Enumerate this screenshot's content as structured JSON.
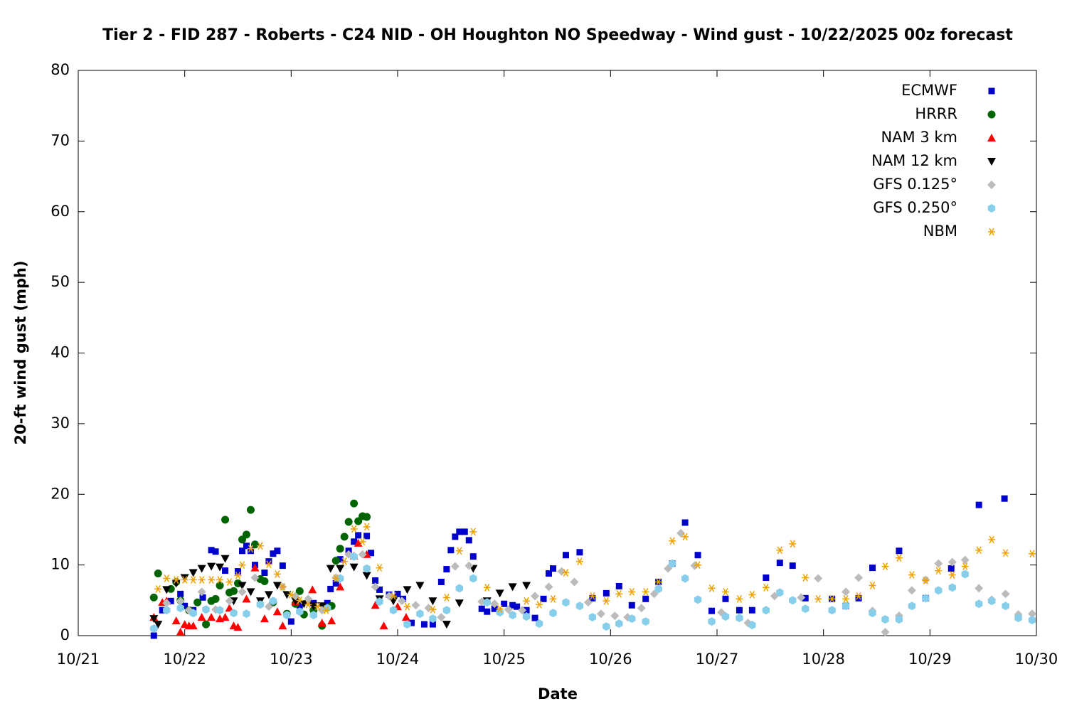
{
  "chart_data": {
    "type": "scatter",
    "title": "Tier 2 - FID 287 - Roberts - C24 NID - OH Houghton NO Speedway - Wind gust - 10/22/2025 00z forecast",
    "x_label": "Date",
    "y_label": "20-ft wind gust (mph)",
    "xlim": [
      0,
      9
    ],
    "xticks": [
      {
        "value": 0,
        "label": "10/21"
      },
      {
        "value": 1,
        "label": "10/22"
      },
      {
        "value": 2,
        "label": "10/23"
      },
      {
        "value": 3,
        "label": "10/24"
      },
      {
        "value": 4,
        "label": "10/25"
      },
      {
        "value": 5,
        "label": "10/26"
      },
      {
        "value": 6,
        "label": "10/27"
      },
      {
        "value": 7,
        "label": "10/28"
      },
      {
        "value": 8,
        "label": "10/29"
      },
      {
        "value": 9,
        "label": "10/30"
      }
    ],
    "ylim": [
      0,
      80
    ],
    "yticks": [
      0,
      10,
      20,
      30,
      40,
      50,
      60,
      70,
      80
    ],
    "grid": false,
    "legend": "top-right",
    "series": [
      {
        "name": "ECMWF",
        "color": "#0000cc",
        "marker": "square",
        "x": [
          0.71,
          0.79,
          0.87,
          0.96,
          1.0,
          1.08,
          1.17,
          1.25,
          1.29,
          1.38,
          1.5,
          1.54,
          1.58,
          1.62,
          1.66,
          1.75,
          1.79,
          1.83,
          1.87,
          1.92,
          2.0,
          2.08,
          2.21,
          2.34,
          2.37,
          2.42,
          2.46,
          2.54,
          2.59,
          2.63,
          2.71,
          2.75,
          2.79,
          2.83,
          2.92,
          3.0,
          3.05,
          3.13,
          3.25,
          3.33,
          3.41,
          3.46,
          3.5,
          3.54,
          3.58,
          3.63,
          3.67,
          3.71,
          3.79,
          3.84,
          3.91,
          4.0,
          4.08,
          4.12,
          4.21,
          4.29,
          4.37,
          4.42,
          4.46,
          4.58,
          4.71,
          4.83,
          4.96,
          5.08,
          5.2,
          5.33,
          5.45,
          5.58,
          5.7,
          5.82,
          5.95,
          6.08,
          6.21,
          6.33,
          6.46,
          6.59,
          6.71,
          6.83,
          7.08,
          7.21,
          7.33,
          7.46,
          7.71,
          7.96,
          8.2,
          8.46,
          8.7
        ],
        "values": [
          0,
          3.6,
          4.9,
          5.9,
          4.2,
          3.6,
          5.4,
          12.1,
          11.9,
          9.2,
          9.1,
          12.0,
          12.7,
          12.0,
          10.0,
          8.9,
          10.5,
          11.6,
          12.0,
          9.9,
          2.0,
          4.3,
          4.6,
          4.6,
          6.6,
          7.4,
          10.8,
          12.0,
          13.3,
          14.2,
          14.1,
          11.7,
          7.8,
          6.5,
          5.8,
          5.9,
          5.2,
          1.8,
          1.6,
          1.6,
          7.6,
          9.4,
          12.1,
          14.0,
          14.7,
          14.7,
          13.5,
          11.2,
          3.8,
          3.4,
          3.8,
          4.5,
          4.3,
          4.1,
          3.6,
          2.5,
          5.2,
          8.8,
          9.5,
          11.4,
          11.8,
          5.3,
          6.0,
          7.0,
          4.3,
          5.2,
          7.6,
          10.2,
          16.0,
          11.4,
          3.5,
          5.2,
          3.6,
          3.6,
          8.2,
          10.3,
          9.9,
          5.3,
          5.2,
          4.2,
          5.3,
          9.6,
          12.0,
          5.3,
          9.5,
          18.5,
          19.4
        ]
      },
      {
        "name": "HRRR",
        "color": "#006400",
        "marker": "circle",
        "x": [
          0.71,
          0.75,
          0.87,
          0.92,
          0.96,
          1.04,
          1.12,
          1.2,
          1.25,
          1.29,
          1.33,
          1.38,
          1.42,
          1.46,
          1.5,
          1.54,
          1.58,
          1.62,
          1.66,
          1.71,
          1.75,
          1.83,
          1.96,
          2.04,
          2.08,
          2.12,
          2.21,
          2.29,
          2.38,
          2.42,
          2.46,
          2.5,
          2.54,
          2.59,
          2.63,
          2.67,
          2.71
        ],
        "values": [
          5.4,
          8.8,
          6.6,
          7.6,
          5.0,
          3.6,
          4.7,
          1.6,
          4.9,
          5.2,
          7.1,
          16.4,
          6.1,
          6.3,
          7.4,
          13.6,
          14.3,
          17.8,
          12.9,
          8.0,
          7.7,
          4.7,
          3.1,
          4.5,
          6.3,
          3.0,
          3.6,
          1.4,
          4.2,
          10.6,
          12.3,
          14.0,
          16.1,
          18.7,
          16.2,
          16.9,
          16.8
        ]
      },
      {
        "name": "NAM 3 km",
        "color": "#ff0000",
        "marker": "triangle-up",
        "x": [
          0.71,
          0.79,
          0.83,
          0.92,
          0.96,
          1.0,
          1.04,
          1.08,
          1.16,
          1.25,
          1.33,
          1.38,
          1.42,
          1.46,
          1.5,
          1.58,
          1.66,
          1.75,
          1.87,
          1.92,
          2.04,
          2.2,
          2.29,
          2.38,
          2.46,
          2.59,
          2.63,
          2.71,
          2.79,
          2.87,
          3.0,
          3.08
        ],
        "values": [
          2.6,
          4.7,
          4.9,
          2.1,
          0.5,
          1.6,
          1.4,
          1.4,
          2.6,
          2.6,
          2.4,
          2.6,
          3.9,
          1.4,
          1.2,
          5.2,
          9.6,
          2.4,
          3.4,
          1.4,
          4.8,
          6.5,
          1.8,
          2.1,
          6.9,
          11.3,
          13.1,
          11.5,
          4.3,
          1.4,
          4.1,
          2.6
        ]
      },
      {
        "name": "NAM 12 km",
        "color": "#000000",
        "marker": "triangle-down",
        "x": [
          0.71,
          0.75,
          0.83,
          0.92,
          1.0,
          1.08,
          1.16,
          1.25,
          1.33,
          1.38,
          1.46,
          1.54,
          1.62,
          1.71,
          1.79,
          1.87,
          1.96,
          2.04,
          2.12,
          2.21,
          2.29,
          2.37,
          2.46,
          2.59,
          2.71,
          2.83,
          2.96,
          3.09,
          3.21,
          3.33,
          3.46,
          3.58,
          3.71,
          3.84,
          3.96,
          4.08,
          4.21
        ],
        "values": [
          2.4,
          1.6,
          6.5,
          7.4,
          8.2,
          8.9,
          9.5,
          9.8,
          9.7,
          10.9,
          4.9,
          7.1,
          6.2,
          4.9,
          5.8,
          7.1,
          5.8,
          4.9,
          4.5,
          4.2,
          4.2,
          9.5,
          9.5,
          9.7,
          8.5,
          5.2,
          4.9,
          6.5,
          7.1,
          4.9,
          1.6,
          4.6,
          9.5,
          4.9,
          6.0,
          6.9,
          7.1
        ]
      },
      {
        "name": "GFS 0.125°",
        "color": "#bbbbbb",
        "marker": "diamond",
        "x": [
          0.71,
          0.83,
          0.96,
          1.04,
          1.16,
          1.29,
          1.42,
          1.54,
          1.66,
          1.79,
          1.92,
          2.04,
          2.16,
          2.29,
          2.42,
          2.54,
          2.67,
          2.79,
          2.92,
          3.04,
          3.17,
          3.29,
          3.41,
          3.54,
          3.67,
          3.79,
          3.91,
          4.04,
          4.17,
          4.29,
          4.42,
          4.54,
          4.66,
          4.79,
          4.91,
          5.04,
          5.16,
          5.29,
          5.41,
          5.54,
          5.66,
          5.79,
          6.04,
          6.29,
          6.54,
          6.79,
          6.95,
          7.21,
          7.33,
          7.46,
          7.58,
          7.71,
          7.83,
          7.96,
          8.08,
          8.21,
          8.33,
          8.46,
          8.58,
          8.71,
          8.83,
          8.96
        ],
        "values": [
          1.0,
          4.6,
          4.9,
          3.6,
          6.2,
          3.7,
          4.9,
          6.2,
          8.2,
          4.1,
          6.9,
          5.6,
          5.2,
          3.6,
          8.2,
          11.5,
          11.5,
          6.9,
          5.6,
          4.9,
          4.3,
          3.9,
          2.6,
          9.8,
          9.9,
          4.8,
          4.5,
          3.7,
          3.6,
          5.6,
          6.9,
          9.1,
          7.6,
          4.7,
          3.1,
          2.8,
          2.6,
          3.9,
          5.9,
          9.5,
          14.5,
          9.9,
          3.3,
          1.8,
          5.6,
          5.4,
          8.1,
          6.2,
          8.2,
          3.5,
          0.5,
          2.8,
          6.4,
          7.9,
          10.2,
          10.4,
          10.7,
          6.7,
          5.1,
          5.9,
          3.0,
          3.1
        ]
      },
      {
        "name": "GFS 0.250°",
        "color": "#87ceeb",
        "marker": "hexagon",
        "x": [
          0.71,
          0.83,
          0.96,
          1.08,
          1.2,
          1.33,
          1.46,
          1.58,
          1.71,
          1.83,
          1.96,
          2.08,
          2.21,
          2.34,
          2.46,
          2.59,
          2.71,
          2.83,
          2.96,
          3.09,
          3.21,
          3.33,
          3.46,
          3.58,
          3.71,
          3.84,
          3.96,
          4.08,
          4.21,
          4.33,
          4.46,
          4.58,
          4.71,
          4.83,
          4.96,
          5.08,
          5.2,
          5.33,
          5.45,
          5.58,
          5.7,
          5.82,
          5.95,
          6.08,
          6.21,
          6.33,
          6.46,
          6.59,
          6.71,
          6.83,
          7.08,
          7.21,
          7.46,
          7.58,
          7.71,
          7.83,
          7.96,
          8.08,
          8.21,
          8.33,
          8.46,
          8.58,
          8.71,
          8.83,
          8.96
        ],
        "values": [
          1.0,
          3.6,
          3.9,
          3.2,
          3.7,
          3.6,
          3.2,
          3.1,
          4.4,
          4.9,
          2.9,
          3.4,
          2.9,
          3.9,
          8.1,
          11.2,
          9.5,
          4.8,
          3.6,
          1.6,
          3.1,
          2.4,
          3.6,
          6.7,
          8.1,
          4.7,
          3.3,
          2.9,
          2.7,
          1.7,
          3.2,
          4.7,
          4.2,
          2.6,
          1.3,
          1.7,
          2.4,
          2.0,
          6.6,
          10.2,
          8.1,
          5.1,
          2.0,
          2.7,
          2.5,
          1.5,
          3.6,
          6.1,
          5.0,
          3.8,
          3.6,
          4.2,
          3.2,
          2.3,
          2.3,
          4.2,
          5.3,
          6.4,
          6.8,
          8.7,
          4.5,
          4.9,
          4.2,
          2.5,
          2.2
        ]
      },
      {
        "name": "NBM",
        "color": "#f0a000",
        "marker": "asterisk",
        "x": [
          0.75,
          0.83,
          0.92,
          1.0,
          1.08,
          1.16,
          1.25,
          1.33,
          1.42,
          1.5,
          1.54,
          1.62,
          1.71,
          1.79,
          1.87,
          1.92,
          2.0,
          2.08,
          2.16,
          2.25,
          2.33,
          2.42,
          2.5,
          2.59,
          2.67,
          2.71,
          2.83,
          2.96,
          3.09,
          3.33,
          3.46,
          3.58,
          3.71,
          3.84,
          3.96,
          4.21,
          4.33,
          4.46,
          4.58,
          4.71,
          4.83,
          4.96,
          5.08,
          5.2,
          5.33,
          5.45,
          5.58,
          5.7,
          5.82,
          5.95,
          6.08,
          6.21,
          6.33,
          6.46,
          6.59,
          6.71,
          6.83,
          6.95,
          7.08,
          7.21,
          7.33,
          7.46,
          7.58,
          7.71,
          7.83,
          7.96,
          8.08,
          8.21,
          8.33,
          8.46,
          8.58,
          8.71,
          8.96
        ],
        "values": [
          6.6,
          8.1,
          7.9,
          7.9,
          7.9,
          7.9,
          7.9,
          7.9,
          7.6,
          8.5,
          10.0,
          12.3,
          12.7,
          10.1,
          8.7,
          6.9,
          5.8,
          5.0,
          4.4,
          4.1,
          3.6,
          8.1,
          10.5,
          15.1,
          13.3,
          15.4,
          9.6,
          5.6,
          4.1,
          3.7,
          5.4,
          12.0,
          14.7,
          6.8,
          3.8,
          4.9,
          4.4,
          5.2,
          8.9,
          10.5,
          5.6,
          4.9,
          5.9,
          6.2,
          6.2,
          7.6,
          13.4,
          14.0,
          10.0,
          6.7,
          6.2,
          5.2,
          5.8,
          6.8,
          12.1,
          13.0,
          8.2,
          5.2,
          5.2,
          5.2,
          5.6,
          7.1,
          9.8,
          11.0,
          8.6,
          7.8,
          9.2,
          8.6,
          9.8,
          12.1,
          13.6,
          11.7,
          11.6
        ]
      }
    ]
  }
}
